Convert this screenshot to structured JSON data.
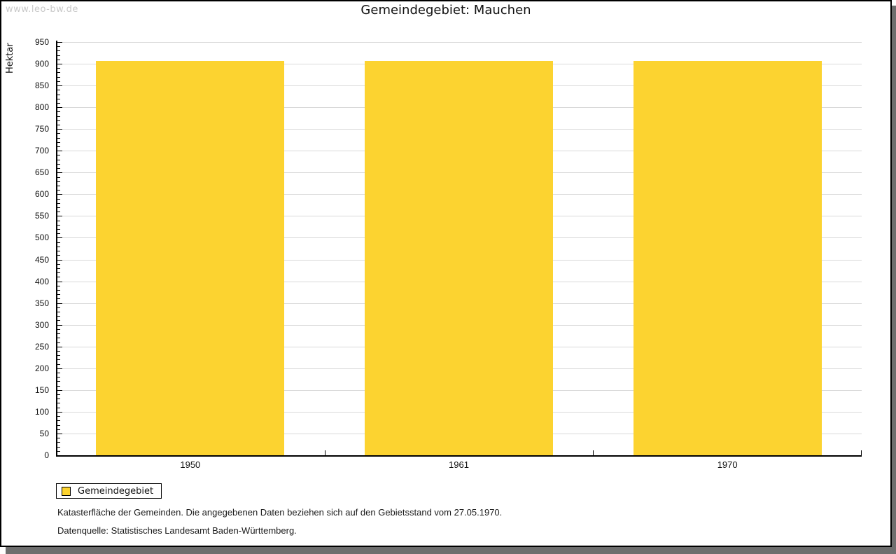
{
  "watermark": "www.leo-bw.de",
  "title": "Gemeindegebiet: Mauchen",
  "legend": {
    "label": "Gemeindegebiet",
    "swatch_color": "#FCD330"
  },
  "footnotes": [
    "Katasterfläche der Gemeinden. Die angegebenen Daten beziehen sich auf den Gebietsstand vom 27.05.1970.",
    "Datenquelle: Statistisches Landesamt Baden-Württemberg."
  ],
  "chart_data": {
    "type": "bar",
    "title": "Gemeindegebiet: Mauchen",
    "categories": [
      "1950",
      "1961",
      "1970"
    ],
    "series": [
      {
        "name": "Gemeindegebiet",
        "values": [
          907,
          907,
          907
        ]
      }
    ],
    "xlabel": "",
    "ylabel": "Hektar",
    "ylim": [
      0,
      950
    ],
    "y_major_step": 50,
    "y_minor_step": 10,
    "grid": true,
    "bar_color": "#FCD330",
    "gridline_color": "#D9D9D9",
    "legend_position": "bottom-left"
  }
}
